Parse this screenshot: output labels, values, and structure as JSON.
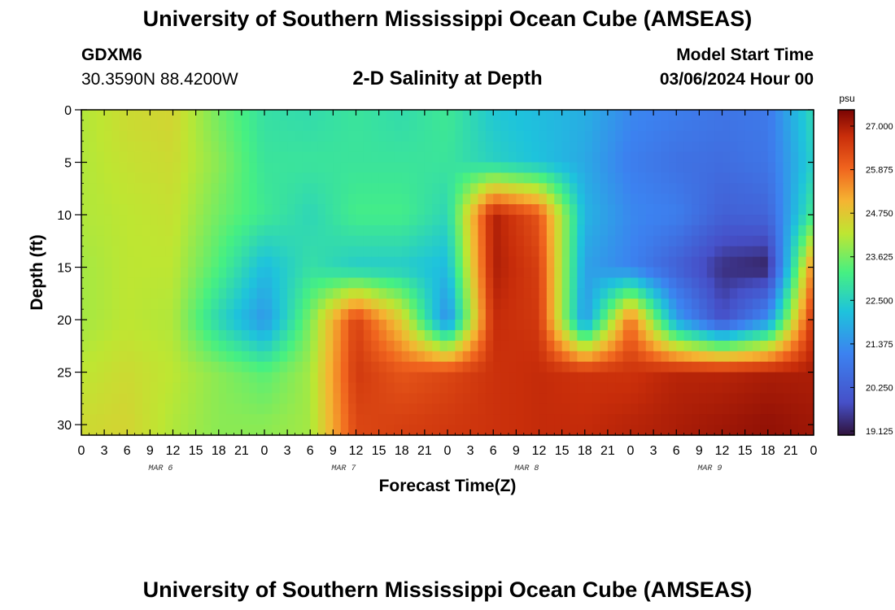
{
  "header": {
    "title": "University of Southern Mississippi Ocean Cube (AMSEAS)",
    "station_id": "GDXM6",
    "coordinates": "30.3590N  88.4200W",
    "plot_title": "2-D Salinity at Depth",
    "start_label": "Model Start Time",
    "start_value": "03/06/2024 Hour 00"
  },
  "footer": {
    "title": "University of Southern Mississippi Ocean Cube (AMSEAS)"
  },
  "chart_data": {
    "type": "heatmap",
    "title": "2-D Salinity at Depth",
    "xlabel": "Forecast Time(Z)",
    "ylabel": "Depth (ft)",
    "x_tick_labels": [
      "0",
      "3",
      "6",
      "9",
      "12",
      "15",
      "18",
      "21",
      "0",
      "3",
      "6",
      "9",
      "12",
      "15",
      "18",
      "21",
      "0",
      "3",
      "6",
      "9",
      "12",
      "15",
      "18",
      "21",
      "0",
      "3",
      "6",
      "9",
      "12",
      "15",
      "18",
      "21",
      "0"
    ],
    "x_range_hours": [
      0,
      96
    ],
    "day_labels": [
      {
        "label": "MAR 6",
        "hour": 9
      },
      {
        "label": "MAR 7",
        "hour": 33
      },
      {
        "label": "MAR 8",
        "hour": 57
      },
      {
        "label": "MAR 9",
        "hour": 81
      }
    ],
    "y_tick_labels": [
      "0",
      "5",
      "10",
      "15",
      "20",
      "25",
      "30"
    ],
    "y_range_ft": [
      0,
      31
    ],
    "colorbar": {
      "unit": "psu",
      "min": 19.125,
      "max": 27.0,
      "tick_labels": [
        "27.000",
        "25.875",
        "24.750",
        "23.625",
        "22.500",
        "21.375",
        "20.250",
        "19.125"
      ]
    },
    "salinity_psu": {
      "description_hours": [
        0,
        6,
        12,
        18,
        24,
        30,
        36,
        42,
        48,
        54,
        60,
        66,
        72,
        78,
        84,
        90,
        96
      ],
      "description_depths_ft": [
        0,
        5,
        10,
        15,
        20,
        25,
        30
      ],
      "grid": [
        [
          23.9,
          24.2,
          24.3,
          23.4,
          22.7,
          22.6,
          22.8,
          22.6,
          22.9,
          22.2,
          22.0,
          21.8,
          21.2,
          21.0,
          20.8,
          20.9,
          22.6
        ],
        [
          23.9,
          24.1,
          24.2,
          23.6,
          22.8,
          22.8,
          22.8,
          22.8,
          22.8,
          22.4,
          22.1,
          21.7,
          21.0,
          20.7,
          20.6,
          20.8,
          22.4
        ],
        [
          23.9,
          24.0,
          24.1,
          23.4,
          22.9,
          22.5,
          23.0,
          23.0,
          22.5,
          26.6,
          25.8,
          21.9,
          21.2,
          21.0,
          20.3,
          20.4,
          23.0
        ],
        [
          23.8,
          24.0,
          24.0,
          23.1,
          22.0,
          22.7,
          22.3,
          22.3,
          22.0,
          26.6,
          26.1,
          21.6,
          21.1,
          20.3,
          19.5,
          19.3,
          25.4
        ],
        [
          23.8,
          24.0,
          23.9,
          22.5,
          21.4,
          23.5,
          26.1,
          24.4,
          21.2,
          26.4,
          26.2,
          21.4,
          25.5,
          21.6,
          19.9,
          21.3,
          26.4
        ],
        [
          24.0,
          24.2,
          24.0,
          23.6,
          23.2,
          23.8,
          26.2,
          25.8,
          26.0,
          26.3,
          26.4,
          26.3,
          26.3,
          26.5,
          26.5,
          26.6,
          26.6
        ],
        [
          24.2,
          24.3,
          23.9,
          23.6,
          23.6,
          23.8,
          26.0,
          26.1,
          26.2,
          26.3,
          26.4,
          26.4,
          26.5,
          26.6,
          26.7,
          26.8,
          26.7
        ]
      ]
    }
  }
}
